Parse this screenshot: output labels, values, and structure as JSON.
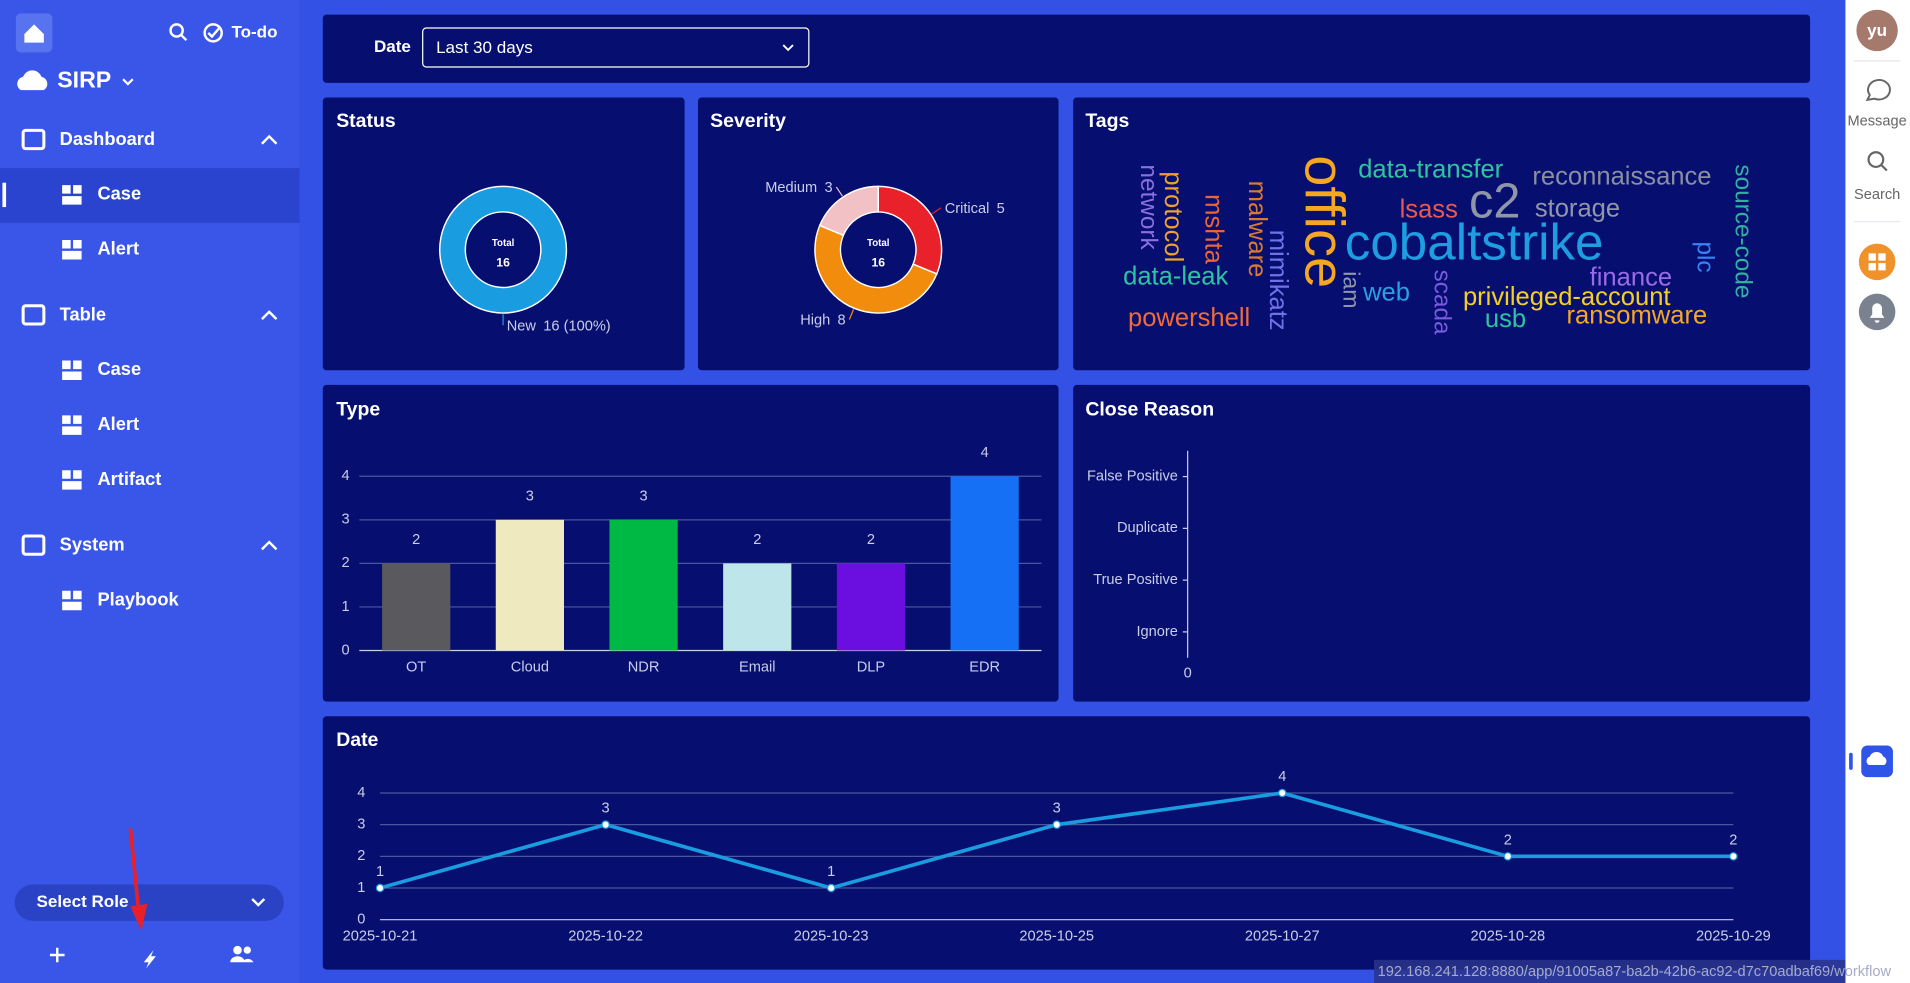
{
  "sidebar": {
    "brand": "SIRP",
    "todo": "To-do",
    "sections": [
      {
        "label": "Dashboard",
        "items": [
          "Case",
          "Alert"
        ]
      },
      {
        "label": "Table",
        "items": [
          "Case",
          "Alert",
          "Artifact"
        ]
      },
      {
        "label": "System",
        "items": [
          "Playbook"
        ]
      }
    ],
    "role_select": "Select Role"
  },
  "filter": {
    "label": "Date",
    "value": "Last 30 days"
  },
  "right_bar": {
    "avatar": "yu",
    "items": [
      "Message",
      "Search"
    ]
  },
  "url": "192.168.241.128:8880/app/91005a87-ba2b-42b6-ac92-d7c70adbaf69/workflow",
  "status": {
    "title": "Status",
    "type": "donut",
    "center_label": "Total",
    "total": 16,
    "slices": [
      {
        "name": "New",
        "value": 16,
        "value_label": "16 (100%)",
        "color": "#1a9de0"
      }
    ]
  },
  "severity": {
    "title": "Severity",
    "type": "donut",
    "center_label": "Total",
    "total": 16,
    "slices": [
      {
        "name": "Critical",
        "value": 5,
        "color": "#e8212a"
      },
      {
        "name": "High",
        "value": 8,
        "color": "#f28c0c"
      },
      {
        "name": "Medium",
        "value": 3,
        "color": "#f2c1c6"
      }
    ]
  },
  "tags": {
    "title": "Tags",
    "type": "wordcloud",
    "words": [
      {
        "text": "network",
        "color": "#8b6fe0"
      },
      {
        "text": "protocol",
        "color": "#f0a030"
      },
      {
        "text": "mshta",
        "color": "#e8643c"
      },
      {
        "text": "malware",
        "color": "#d97a30"
      },
      {
        "text": "mimikatz",
        "color": "#6f72e8"
      },
      {
        "text": "office",
        "color": "#f5a623"
      },
      {
        "text": "data-transfer",
        "color": "#2ec4a0"
      },
      {
        "text": "reconnaissance",
        "color": "#8a8fa0"
      },
      {
        "text": "source-code",
        "color": "#2fb3a0"
      },
      {
        "text": "lsass",
        "color": "#e85a4f"
      },
      {
        "text": "c2",
        "color": "#8f96a8"
      },
      {
        "text": "storage",
        "color": "#8f96a8"
      },
      {
        "text": "cobaltstrike",
        "color": "#1e9ee0"
      },
      {
        "text": "plc",
        "color": "#3b82f6"
      },
      {
        "text": "data-leak",
        "color": "#2ec4a0"
      },
      {
        "text": "iam",
        "color": "#8f96a8"
      },
      {
        "text": "web",
        "color": "#2aa0e0"
      },
      {
        "text": "scada",
        "color": "#7a5ae0"
      },
      {
        "text": "finance",
        "color": "#9a6ae8"
      },
      {
        "text": "privileged-account",
        "color": "#f5d020"
      },
      {
        "text": "powershell",
        "color": "#f06a3a"
      },
      {
        "text": "usb",
        "color": "#2ec4a0"
      },
      {
        "text": "ransomware",
        "color": "#f5a623"
      }
    ]
  },
  "type": {
    "title": "Type",
    "type": "bar",
    "categories": [
      "OT",
      "Cloud",
      "NDR",
      "Email",
      "DLP",
      "EDR"
    ],
    "values": [
      2,
      3,
      3,
      2,
      2,
      4
    ],
    "colors": [
      "#5a5a5e",
      "#efe9c0",
      "#00b944",
      "#bde5ea",
      "#6a0fe0",
      "#1570f5"
    ],
    "ylim": [
      0,
      4
    ],
    "yticks": [
      0,
      1,
      2,
      3,
      4
    ],
    "grid": true
  },
  "close_reason": {
    "title": "Close Reason",
    "type": "hbar",
    "categories": [
      "False Positive",
      "Duplicate",
      "True Positive",
      "Ignore"
    ],
    "values": [
      0,
      0,
      0,
      0
    ],
    "xticks": [
      0
    ],
    "color": "#1a9de0"
  },
  "date_trend": {
    "title": "Date",
    "type": "line",
    "x": [
      "2025-10-21",
      "2025-10-22",
      "2025-10-23",
      "2025-10-25",
      "2025-10-27",
      "2025-10-28",
      "2025-10-29"
    ],
    "values": [
      1,
      3,
      1,
      3,
      4,
      2,
      2
    ],
    "color": "#1a9de0",
    "ylim": [
      0,
      4
    ],
    "yticks": [
      0,
      1,
      2,
      3,
      4
    ],
    "grid": true
  }
}
